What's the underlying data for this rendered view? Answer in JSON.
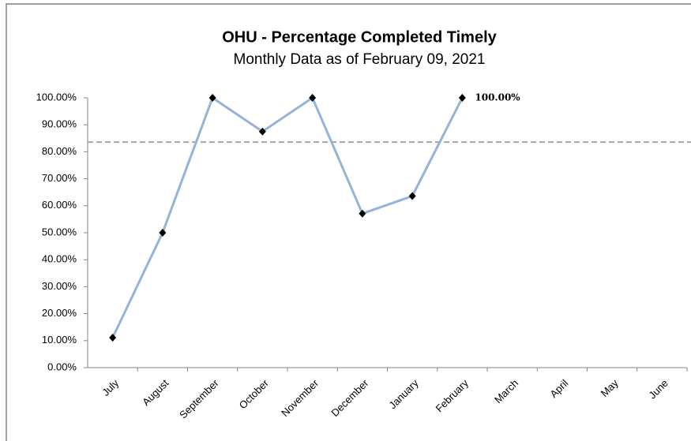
{
  "chart_data": {
    "type": "line",
    "title": "OHU - Percentage Completed Timely",
    "subtitle": "Monthly Data as of February 09, 2021",
    "categories": [
      "July",
      "August",
      "September",
      "October",
      "November",
      "December",
      "January",
      "February",
      "March",
      "April",
      "May",
      "June"
    ],
    "series": [
      {
        "name": "Percentage Completed Timely",
        "color": "#95b3d7",
        "values": [
          11.1,
          50,
          100,
          87.5,
          100,
          57.1,
          63.6,
          100,
          null,
          null,
          null,
          null
        ],
        "value_labels": [
          null,
          null,
          null,
          null,
          null,
          null,
          null,
          "100.00%",
          null,
          null,
          null,
          null
        ]
      }
    ],
    "reference_line": 83.6,
    "ylim": [
      0,
      100
    ],
    "yticks": [
      {
        "value": 0,
        "label": "0.00%"
      },
      {
        "value": 10,
        "label": "10.00%"
      },
      {
        "value": 20,
        "label": "20.00%"
      },
      {
        "value": 30,
        "label": "30.00%"
      },
      {
        "value": 40,
        "label": "40.00%"
      },
      {
        "value": 50,
        "label": "50.00%"
      },
      {
        "value": 60,
        "label": "60.00%"
      },
      {
        "value": 70,
        "label": "70.00%"
      },
      {
        "value": 80,
        "label": "80.00%"
      },
      {
        "value": 90,
        "label": "90.00%"
      },
      {
        "value": 100,
        "label": "100.00%"
      }
    ],
    "grid": false
  }
}
